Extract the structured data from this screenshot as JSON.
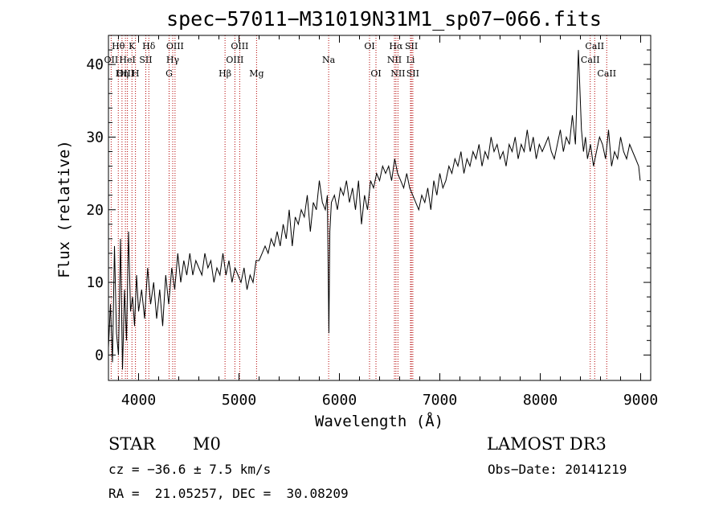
{
  "chart_data": {
    "type": "line",
    "title": "spec−57011−M31019N31M1_sp07−066.fits",
    "xlabel": "Wavelength (Å)",
    "ylabel": "Flux (relative)",
    "xlim": [
      3700,
      9100
    ],
    "ylim": [
      -3.5,
      44
    ],
    "xticks": [
      4000,
      5000,
      6000,
      7000,
      8000,
      9000
    ],
    "yticks": [
      0,
      10,
      20,
      30,
      40
    ],
    "series": [
      {
        "name": "spectrum",
        "x": [
          3700,
          3720,
          3740,
          3760,
          3780,
          3800,
          3820,
          3840,
          3860,
          3880,
          3900,
          3920,
          3940,
          3960,
          3980,
          4000,
          4030,
          4060,
          4090,
          4120,
          4150,
          4180,
          4210,
          4240,
          4270,
          4300,
          4330,
          4360,
          4390,
          4420,
          4450,
          4480,
          4510,
          4540,
          4570,
          4600,
          4630,
          4660,
          4690,
          4720,
          4750,
          4780,
          4810,
          4840,
          4870,
          4900,
          4930,
          4960,
          4990,
          5020,
          5050,
          5080,
          5110,
          5140,
          5170,
          5200,
          5230,
          5260,
          5290,
          5320,
          5350,
          5380,
          5410,
          5440,
          5470,
          5500,
          5530,
          5560,
          5590,
          5620,
          5650,
          5680,
          5710,
          5740,
          5770,
          5800,
          5830,
          5860,
          5880,
          5895,
          5905,
          5920,
          5950,
          5980,
          6010,
          6040,
          6070,
          6100,
          6130,
          6160,
          6190,
          6220,
          6250,
          6280,
          6310,
          6340,
          6370,
          6400,
          6430,
          6460,
          6490,
          6520,
          6550,
          6580,
          6610,
          6640,
          6670,
          6700,
          6730,
          6760,
          6790,
          6820,
          6850,
          6880,
          6910,
          6940,
          6970,
          7000,
          7030,
          7060,
          7090,
          7120,
          7150,
          7180,
          7210,
          7240,
          7270,
          7300,
          7330,
          7360,
          7390,
          7420,
          7450,
          7480,
          7510,
          7540,
          7570,
          7600,
          7630,
          7660,
          7690,
          7720,
          7750,
          7780,
          7810,
          7840,
          7870,
          7900,
          7930,
          7960,
          7990,
          8020,
          8050,
          8080,
          8110,
          8140,
          8170,
          8200,
          8230,
          8260,
          8290,
          8320,
          8350,
          8380,
          8410,
          8430,
          8450,
          8470,
          8500,
          8530,
          8560,
          8590,
          8620,
          8650,
          8680,
          8710,
          8740,
          8770,
          8800,
          8830,
          8860,
          8890,
          8920,
          8950,
          8980,
          8995
        ],
        "y": [
          1,
          7,
          -1,
          15,
          3,
          0,
          16,
          -2,
          9,
          2,
          17,
          6,
          8,
          4,
          11,
          6,
          9,
          5,
          12,
          7,
          10,
          5,
          9,
          4,
          11,
          7,
          12,
          9,
          14,
          10,
          13,
          11,
          14,
          11,
          13,
          12,
          11,
          14,
          12,
          13,
          10,
          12,
          11,
          14,
          11,
          13,
          10,
          12,
          11,
          10,
          12,
          9,
          11,
          10,
          13,
          13,
          14,
          15,
          14,
          16,
          15,
          17,
          15,
          18,
          16,
          20,
          15,
          19,
          18,
          20,
          19,
          22,
          17,
          21,
          20,
          24,
          21,
          20,
          22,
          3,
          17,
          21,
          22,
          20,
          23,
          22,
          24,
          21,
          23,
          20,
          24,
          18,
          22,
          20,
          24,
          23,
          25,
          24,
          26,
          25,
          26,
          24,
          27,
          25,
          24,
          23,
          25,
          23,
          22,
          21,
          20,
          22,
          21,
          23,
          20,
          24,
          22,
          25,
          23,
          24,
          26,
          25,
          27,
          26,
          28,
          25,
          27,
          26,
          28,
          27,
          29,
          26,
          28,
          27,
          30,
          28,
          29,
          27,
          28,
          26,
          29,
          28,
          30,
          27,
          29,
          28,
          31,
          28,
          30,
          27,
          29,
          28,
          29,
          30,
          28,
          27,
          29,
          31,
          28,
          30,
          29,
          33,
          29,
          42,
          31,
          28,
          30,
          27,
          29,
          26,
          28,
          30,
          29,
          27,
          31,
          26,
          28,
          27,
          30,
          28,
          27,
          29,
          28,
          27,
          26,
          24
        ]
      }
    ],
    "spectral_lines": [
      {
        "label": "Hθ",
        "wl": 3798,
        "row": 1
      },
      {
        "label": "OII",
        "wl": 3727,
        "row": 2
      },
      {
        "label": "OIII",
        "wl": 3869,
        "row": 3
      },
      {
        "label": "K",
        "wl": 3934,
        "row": 1
      },
      {
        "label": "HeI",
        "wl": 3889,
        "row": 2
      },
      {
        "label": "Hη",
        "wl": 3835,
        "row": 3
      },
      {
        "label": "SII",
        "wl": 4072,
        "row": 2
      },
      {
        "label": "H",
        "wl": 3969,
        "row": 3
      },
      {
        "label": "Hδ",
        "wl": 4102,
        "row": 1
      },
      {
        "label": "OIII",
        "wl": 4363,
        "row": 1
      },
      {
        "label": "Hγ",
        "wl": 4340,
        "row": 2
      },
      {
        "label": "G",
        "wl": 4304,
        "row": 3
      },
      {
        "label": "Hβ",
        "wl": 4861,
        "row": 3
      },
      {
        "label": "OIII",
        "wl": 4959,
        "row": 2
      },
      {
        "label": "OIII",
        "wl": 5007,
        "row": 1
      },
      {
        "label": "Mg",
        "wl": 5175,
        "row": 3
      },
      {
        "label": "Na",
        "wl": 5893,
        "row": 2
      },
      {
        "label": "OI",
        "wl": 6300,
        "row": 1
      },
      {
        "label": "OI",
        "wl": 6364,
        "row": 3
      },
      {
        "label": "Hα",
        "wl": 6563,
        "row": 1
      },
      {
        "label": "NII",
        "wl": 6548,
        "row": 2
      },
      {
        "label": "NII",
        "wl": 6583,
        "row": 3
      },
      {
        "label": "SII",
        "wl": 6717,
        "row": 1
      },
      {
        "label": "Li",
        "wl": 6708,
        "row": 2
      },
      {
        "label": "SII",
        "wl": 6731,
        "row": 3
      },
      {
        "label": "CaII",
        "wl": 8542,
        "row": 1
      },
      {
        "label": "CaII",
        "wl": 8498,
        "row": 2
      },
      {
        "label": "CaII",
        "wl": 8662,
        "row": 3
      }
    ]
  },
  "info": {
    "class": "STAR",
    "subclass": "M0",
    "survey": "LAMOST DR3",
    "cz": "cz = −36.6 ± 7.5 km/s",
    "obs_date": "Obs−Date: 20141219",
    "coords": "RA =  21.05257, DEC =  30.08209"
  },
  "colors": {
    "line_marker": "#b30000",
    "spectrum": "#000000",
    "axis": "#000000"
  }
}
